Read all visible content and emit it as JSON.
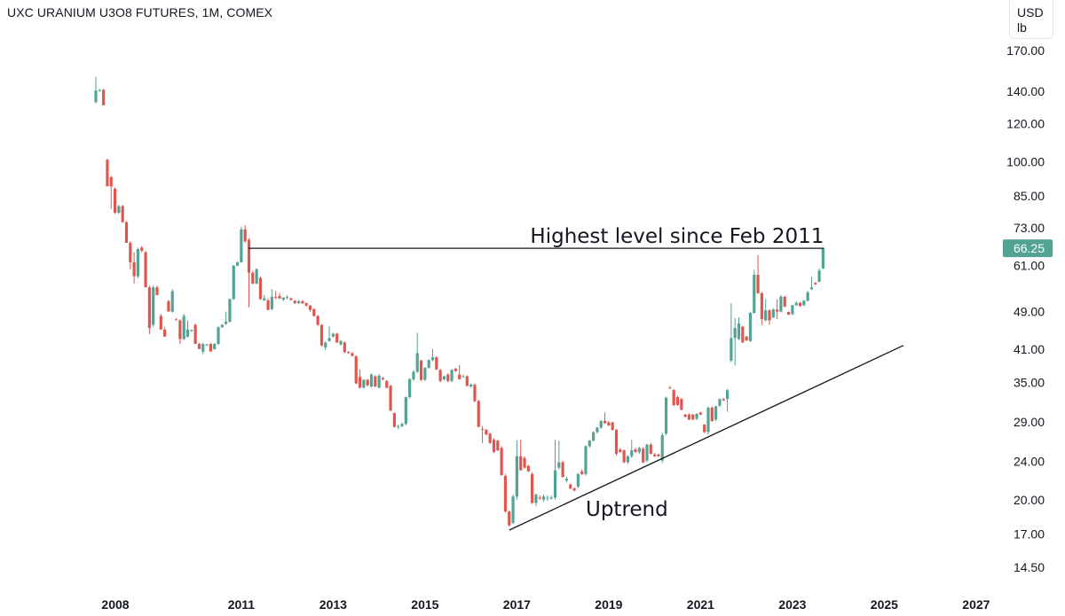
{
  "header": {
    "title": "UXC URANIUM U3O8 FUTURES, 1M, COMEX",
    "unit_line1": "USD",
    "unit_line2": "lb"
  },
  "colors": {
    "up": "#53a394",
    "down": "#e0564f",
    "line": "#131722",
    "last_price_bg": "#53a394"
  },
  "chart_data": {
    "type": "candlestick",
    "title": "UXC URANIUM U3O8 FUTURES, 1M, COMEX",
    "interval": "1M",
    "start": "2007-11",
    "ylabel": "USD / lb",
    "yscale": "log",
    "ylim": [
      13.5,
      175
    ],
    "xlim": [
      "2007-06",
      "2027-10"
    ],
    "y_ticks": [
      "170.00",
      "140.00",
      "120.00",
      "100.00",
      "85.00",
      "73.00",
      "61.00",
      "49.00",
      "41.00",
      "35.00",
      "29.00",
      "24.00",
      "20.00",
      "17.00",
      "14.50"
    ],
    "x_ticks": [
      "2008",
      "2011",
      "2013",
      "2015",
      "2017",
      "2019",
      "2021",
      "2023",
      "2025",
      "2027"
    ],
    "last_price": "66.25",
    "ohlc_fields": [
      "open",
      "high",
      "low",
      "close"
    ],
    "candles": [
      [
        133,
        150,
        132,
        140.5
      ],
      [
        140.5,
        141.5,
        139.5,
        141
      ],
      [
        141,
        141.5,
        131,
        131
      ],
      [
        101,
        101.5,
        89,
        89
      ],
      [
        93,
        93.5,
        80,
        89
      ],
      [
        88,
        88.5,
        78,
        78.5
      ],
      [
        78.5,
        81.5,
        78,
        81
      ],
      [
        81,
        81.5,
        75,
        75
      ],
      [
        75,
        75.5,
        68,
        68
      ],
      [
        68,
        68.5,
        60,
        62
      ],
      [
        62,
        65,
        56,
        58
      ],
      [
        58,
        66.5,
        57.5,
        66
      ],
      [
        66.5,
        67,
        65,
        65.5
      ],
      [
        65,
        65.5,
        55,
        55
      ],
      [
        55,
        55.5,
        44,
        45.3
      ],
      [
        46,
        55.5,
        45.5,
        55
      ],
      [
        55,
        55.5,
        53,
        53
      ],
      [
        48,
        48.5,
        45,
        45
      ],
      [
        45,
        45.5,
        43.5,
        43.5
      ],
      [
        51.5,
        51.8,
        49,
        49
      ],
      [
        49,
        54.5,
        48.8,
        54
      ],
      [
        47.2,
        47.5,
        47,
        47
      ],
      [
        47,
        47.2,
        42,
        43
      ],
      [
        43,
        48.5,
        42.8,
        48
      ],
      [
        43.5,
        47,
        43.3,
        45
      ],
      [
        44.7,
        45,
        44.5,
        44.9
      ],
      [
        46,
        46.3,
        42,
        42
      ],
      [
        42,
        42.2,
        41,
        41
      ],
      [
        40.5,
        42.2,
        40,
        42
      ],
      [
        41.8,
        42,
        41.6,
        41.9
      ],
      [
        42,
        42.2,
        40.5,
        40.5
      ],
      [
        41,
        42.2,
        40.8,
        42
      ],
      [
        42,
        45.7,
        41.8,
        45.5
      ],
      [
        45.5,
        46.2,
        45.3,
        46
      ],
      [
        46.2,
        49,
        46,
        46.7
      ],
      [
        46.7,
        52.2,
        46.5,
        52
      ],
      [
        52,
        61.2,
        51.8,
        61
      ],
      [
        61,
        62.2,
        60.8,
        62
      ],
      [
        62,
        73.5,
        61.8,
        72.5
      ],
      [
        72.5,
        74,
        68,
        68.5
      ],
      [
        69,
        69.5,
        50,
        59
      ],
      [
        59,
        59.5,
        55.8,
        56
      ],
      [
        56,
        60.2,
        55.8,
        60
      ],
      [
        57.5,
        58,
        51.8,
        52
      ],
      [
        51.7,
        53,
        51.5,
        52.2
      ],
      [
        51.7,
        52.2,
        49.3,
        49.4
      ],
      [
        49.6,
        54.5,
        49.3,
        52.6
      ],
      [
        52.5,
        54,
        52,
        52.3
      ],
      [
        52.8,
        53.5,
        52,
        52.2
      ],
      [
        51.9,
        52.5,
        51.5,
        52.4
      ],
      [
        52.4,
        53,
        52,
        52.5
      ],
      [
        52.2,
        52.4,
        51.6,
        51.8
      ],
      [
        51.6,
        51.8,
        50.8,
        51
      ],
      [
        51,
        51.8,
        50.8,
        51.5
      ],
      [
        51.5,
        51.8,
        50.8,
        51
      ],
      [
        51,
        51.2,
        50.2,
        50.4
      ],
      [
        50.4,
        50.6,
        49,
        49.4
      ],
      [
        49.6,
        49.8,
        47.8,
        48
      ],
      [
        48,
        48.2,
        45.8,
        46
      ],
      [
        46,
        46.2,
        41.5,
        41.7
      ],
      [
        41.3,
        42.5,
        40.8,
        42.3
      ],
      [
        42.6,
        45.7,
        42.5,
        43.2
      ],
      [
        43.5,
        44.3,
        43.3,
        44.1
      ],
      [
        44.1,
        44.3,
        42.2,
        42.3
      ],
      [
        41.9,
        42.8,
        41.7,
        42.6
      ],
      [
        42.3,
        42.5,
        40.2,
        40.4
      ],
      [
        40.4,
        40.6,
        40.1,
        40.3
      ],
      [
        40.2,
        40.4,
        39.5,
        39.7
      ],
      [
        39.6,
        39.8,
        34.7,
        34.8
      ],
      [
        35.9,
        37.2,
        34,
        34.1
      ],
      [
        34.1,
        35.5,
        34,
        35.4
      ],
      [
        35.4,
        35.6,
        34.3,
        34.5
      ],
      [
        34.3,
        36.5,
        34.1,
        36.3
      ],
      [
        36,
        36.2,
        34.2,
        34.3
      ],
      [
        34.1,
        36.4,
        34,
        36.1
      ],
      [
        35.7,
        35.9,
        35.3,
        35.5
      ],
      [
        35.2,
        35.4,
        34,
        34.1
      ],
      [
        34.4,
        34.6,
        30.5,
        30.6
      ],
      [
        30.2,
        30.3,
        28.2,
        28.3
      ],
      [
        28.3,
        28.6,
        28,
        28.4
      ],
      [
        28.4,
        28.9,
        28.2,
        28.7
      ],
      [
        28.7,
        32.7,
        28.5,
        32.6
      ],
      [
        32.6,
        35.7,
        32.4,
        35.5
      ],
      [
        35.5,
        37.1,
        35.2,
        36.8
      ],
      [
        36.8,
        44.3,
        36.5,
        40.2
      ],
      [
        38.8,
        39,
        35.2,
        35.4
      ],
      [
        35.4,
        37.6,
        35.2,
        37.5
      ],
      [
        37.5,
        39,
        37.3,
        38.9
      ],
      [
        38.9,
        41,
        38.7,
        39.4
      ],
      [
        39.4,
        39.6,
        37.1,
        37.2
      ],
      [
        37.1,
        37.3,
        35,
        35.2
      ],
      [
        35.5,
        36.1,
        35.3,
        36
      ],
      [
        36.3,
        36.5,
        35,
        35.2
      ],
      [
        35.2,
        37.3,
        35,
        37.1
      ],
      [
        37.3,
        37.5,
        36.8,
        36.9
      ],
      [
        36.3,
        38,
        35.4,
        35.5
      ],
      [
        36,
        36.3,
        35.8,
        36
      ],
      [
        36,
        36.2,
        34.3,
        34.4
      ],
      [
        34.3,
        34.8,
        34.1,
        34.6
      ],
      [
        34.6,
        34.8,
        31.8,
        32
      ],
      [
        32,
        32.2,
        28.2,
        28.3
      ],
      [
        28,
        28.4,
        26.2,
        27.9
      ],
      [
        27.9,
        28,
        27.2,
        27.3
      ],
      [
        27.4,
        27.5,
        26.1,
        26.2
      ],
      [
        26.6,
        26.8,
        25,
        25.1
      ],
      [
        26.5,
        26.6,
        25.2,
        25.3
      ],
      [
        25.6,
        25.8,
        22.4,
        22.5
      ],
      [
        22.4,
        22.6,
        18.8,
        18.9
      ],
      [
        18.9,
        19,
        17.6,
        17.7
      ],
      [
        17.9,
        20.5,
        17.8,
        20.3
      ],
      [
        20.3,
        26.5,
        20,
        24.6
      ],
      [
        24.6,
        26.6,
        23,
        23
      ],
      [
        24.4,
        24.6,
        23.2,
        23.3
      ],
      [
        23.5,
        23.6,
        22.8,
        22.9
      ],
      [
        22.6,
        22.8,
        19.6,
        19.7
      ],
      [
        19.7,
        20.6,
        19.4,
        20.5
      ],
      [
        20.2,
        20.4,
        20,
        20.1
      ],
      [
        20,
        20.5,
        19.8,
        20.3
      ],
      [
        20.2,
        20.4,
        19.9,
        20.2
      ],
      [
        20.1,
        20.4,
        20,
        20.2
      ],
      [
        20.2,
        26.6,
        20,
        23
      ],
      [
        23.3,
        26.5,
        23.1,
        23.9
      ],
      [
        23.9,
        24.1,
        22.2,
        22.3
      ],
      [
        21.9,
        22.3,
        21.7,
        22.1
      ],
      [
        21.5,
        21.6,
        21,
        21.1
      ],
      [
        21.1,
        21.2,
        20.8,
        20.9
      ],
      [
        21.3,
        22.7,
        21.1,
        22.6
      ],
      [
        22.9,
        23.1,
        22.5,
        22.6
      ],
      [
        22.6,
        25.9,
        22.4,
        25.8
      ],
      [
        25.8,
        26.6,
        25.6,
        26.5
      ],
      [
        26.5,
        27.7,
        26.4,
        27.6
      ],
      [
        27.6,
        28.3,
        27.4,
        28.2
      ],
      [
        28.2,
        29.2,
        28,
        29.1
      ],
      [
        29.1,
        30.3,
        28.7,
        28.8
      ],
      [
        28.9,
        29.1,
        28.4,
        28.5
      ],
      [
        28.9,
        29,
        27.8,
        27.9
      ],
      [
        27.9,
        28,
        24.7,
        24.9
      ],
      [
        25.4,
        25.6,
        25,
        25.1
      ],
      [
        25.3,
        25.4,
        23.8,
        23.9
      ],
      [
        23.9,
        24.7,
        23.7,
        24.6
      ],
      [
        24.6,
        26.6,
        24.4,
        25.3
      ],
      [
        25.4,
        25.6,
        25,
        25.1
      ],
      [
        25.1,
        25.7,
        24.9,
        25.6
      ],
      [
        25.5,
        25.7,
        23.8,
        23.9
      ],
      [
        24.1,
        26.1,
        23.9,
        26
      ],
      [
        26,
        26.2,
        24.8,
        24.9
      ],
      [
        24.8,
        25,
        24.5,
        24.6
      ],
      [
        24.8,
        24.9,
        24.5,
        24.6
      ],
      [
        24.1,
        27.5,
        23.8,
        27.2
      ],
      [
        27.4,
        32.7,
        27.2,
        32.5
      ],
      [
        34.1,
        34.4,
        33.9,
        34
      ],
      [
        33.7,
        33.9,
        31.2,
        31.4
      ],
      [
        32.6,
        32.8,
        31.3,
        31.4
      ],
      [
        32.3,
        32.5,
        30.6,
        30.7
      ],
      [
        30,
        30.1,
        29.6,
        29.7
      ],
      [
        30,
        30.2,
        29.2,
        29.3
      ],
      [
        30,
        30.1,
        29.2,
        29.3
      ],
      [
        29.4,
        30.2,
        29.2,
        30.1
      ],
      [
        30.3,
        30.4,
        29.9,
        30
      ],
      [
        28.6,
        28.7,
        27.5,
        27.6
      ],
      [
        27.6,
        31.2,
        27.3,
        31
      ],
      [
        31,
        31.2,
        29,
        29.1
      ],
      [
        29.3,
        31.3,
        29.1,
        31.2
      ],
      [
        31.3,
        32.4,
        31.1,
        32.3
      ],
      [
        32.3,
        32.5,
        32,
        32.1
      ],
      [
        32.3,
        33.9,
        30.4,
        33.7
      ],
      [
        38.8,
        51,
        38.5,
        43.2
      ],
      [
        43.2,
        47.5,
        37.9,
        45.3
      ],
      [
        43,
        47.7,
        42.8,
        46.3
      ],
      [
        45.6,
        45.8,
        42.2,
        42.3
      ],
      [
        43.5,
        43.7,
        42.6,
        42.7
      ],
      [
        42.6,
        49,
        42.4,
        48.7
      ],
      [
        48.7,
        59.8,
        48.5,
        58.4
      ],
      [
        58.4,
        64.2,
        53.3,
        53.5
      ],
      [
        53.5,
        53.8,
        46,
        47.3
      ],
      [
        47,
        52,
        46.8,
        49.3
      ],
      [
        49.3,
        49.5,
        46,
        47
      ],
      [
        47.7,
        49.8,
        47.5,
        49.5
      ],
      [
        49.5,
        52,
        47.3,
        49
      ],
      [
        49,
        53,
        48.8,
        52.6
      ],
      [
        52.6,
        52.8,
        50,
        50.2
      ],
      [
        48.9,
        49,
        48.2,
        48.3
      ],
      [
        48.4,
        50.6,
        48.2,
        50.5
      ],
      [
        50.5,
        51.5,
        50.3,
        51.1
      ],
      [
        51.1,
        51.3,
        50.2,
        50.3
      ],
      [
        50.5,
        51.8,
        50.3,
        51.6
      ],
      [
        51.6,
        54.2,
        51.4,
        53.7
      ],
      [
        54.5,
        57.9,
        54.3,
        55
      ],
      [
        56.2,
        56.4,
        55.6,
        55.8
      ],
      [
        56.5,
        60.2,
        56.3,
        59.6
      ],
      [
        60.2,
        66.5,
        60,
        66.25
      ]
    ],
    "annotations": [
      {
        "type": "hline",
        "label": "Highest level since Feb 2011",
        "price": 66.25,
        "from": "2011-02",
        "to": "2023-09"
      },
      {
        "type": "trendline",
        "label": "Uptrend",
        "from": {
          "date": "2016-11",
          "price": 17.3
        },
        "to": {
          "date": "2025-06",
          "price": 41.7
        }
      }
    ]
  }
}
